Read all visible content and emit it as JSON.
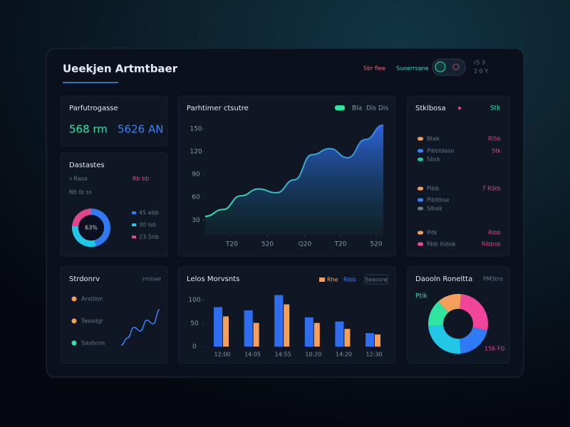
{
  "header": {
    "title": "Ueekjen Artmtbaer",
    "links": [
      "Sbr fiee",
      "Suoerrsane"
    ],
    "status": [
      "r5  3",
      "2  0  Y"
    ]
  },
  "kpi": {
    "title": "Parfutrogasse",
    "items": [
      "568 rm",
      "5626 AN"
    ]
  },
  "stats": {
    "title": "Stklbosa",
    "badge": "Stk",
    "rows": [
      [
        "Btek",
        "Rl5b"
      ],
      [
        "Pibbldaso",
        "Stk"
      ],
      [
        "Sbsk",
        ""
      ],
      [
        "Pibb",
        "7 RStb"
      ],
      [
        "Pibltbse",
        ""
      ],
      [
        "Slbak",
        ""
      ],
      [
        "Pitk",
        "Ribb"
      ],
      [
        "Rbb ilsbsk",
        "Ribbsb"
      ]
    ]
  },
  "summary": {
    "title": "Strdonrv",
    "note": "rrriiser",
    "items": [
      "Arstlion",
      "Tasodgr",
      "Sasbnos"
    ]
  },
  "chart_data": [
    {
      "type": "donut",
      "title": "Dastastes",
      "subtitles": [
        "ꝛ Rasa",
        "Rb bb",
        "Nb lb ss"
      ],
      "center_label": "63%",
      "categories": [
        "45 ebb",
        "30 lsb",
        "23 5nb"
      ],
      "values": [
        45,
        30,
        23
      ],
      "colors": [
        "#2f7bf5",
        "#22c7e8",
        "#e0468f"
      ]
    },
    {
      "type": "line",
      "title": "Parhtimer ctsutre",
      "extra": "Dis Dis",
      "series": [
        {
          "name": "Bla",
          "color": "#2ee6a0",
          "values": [
            35,
            44,
            62,
            71,
            66,
            83,
            116,
            124,
            112,
            136,
            155
          ]
        }
      ],
      "x": [
        0,
        1,
        2,
        3,
        4,
        5,
        6,
        7,
        8,
        9,
        10
      ],
      "xlim": [
        0,
        10
      ],
      "xticks": [
        {
          "value": 1.5,
          "label": "T20"
        },
        {
          "value": 3.5,
          "label": "520"
        },
        {
          "value": 5.6,
          "label": "Q20"
        },
        {
          "value": 7.6,
          "label": "T20"
        },
        {
          "value": 9.6,
          "label": "520"
        }
      ],
      "ylim": [
        20,
        165
      ],
      "yticks": [
        150,
        120,
        90,
        60,
        30
      ]
    },
    {
      "type": "bar",
      "title": "Lelos Morvsnts",
      "button": "Seessre",
      "categories": [
        "12:00",
        "14:05",
        "14:55",
        "10:20",
        "14:20",
        "12:30"
      ],
      "series": [
        {
          "name": "Rhe",
          "color": "#2f6df0",
          "values": [
            85,
            78,
            111,
            63,
            54,
            29
          ]
        },
        {
          "name": "Ribb",
          "color": "#f5a05a",
          "values": [
            65,
            51,
            91,
            51,
            38,
            26
          ]
        }
      ],
      "ylim": [
        0,
        118
      ],
      "yticks": [
        100,
        50,
        0
      ]
    },
    {
      "type": "donut",
      "title": "Daooln Roneltta",
      "note": "PMStro",
      "badge": "Ptik",
      "center_label": "156 FG",
      "values": [
        27,
        20,
        25,
        15,
        13
      ],
      "colors": [
        "#f0459a",
        "#2f7bf5",
        "#22c7e8",
        "#2ee6a0",
        "#f5a05a"
      ]
    },
    {
      "type": "line",
      "series": [
        {
          "name": null,
          "color": "#3b82f6",
          "values": [
            10,
            20,
            35,
            30,
            45,
            40,
            60
          ]
        }
      ],
      "ylim": [
        0,
        70
      ]
    }
  ]
}
